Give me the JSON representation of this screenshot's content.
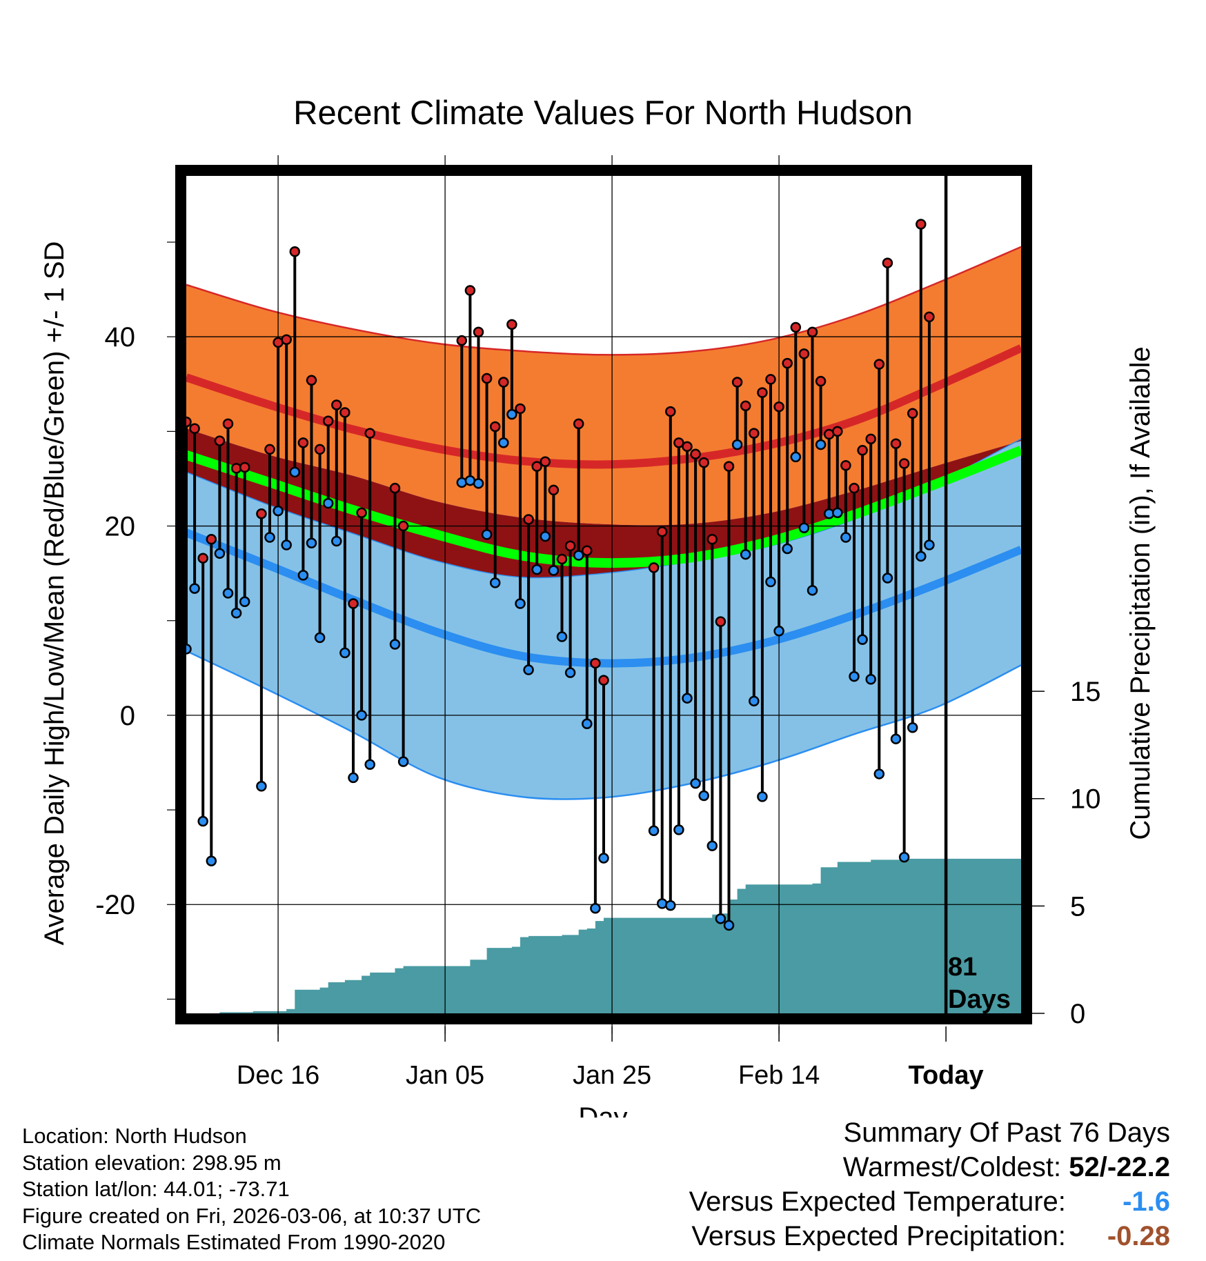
{
  "title": "Recent Climate Values For North Hudson",
  "ylabel_left": "Average Daily High/Low/Mean (Red/Blue/Green) +/- 1 SD",
  "ylabel_right": "Cumulative Precipitation (in), If Available",
  "xlabel": "Day",
  "x_ticks": [
    "Dec 16",
    "Jan 05",
    "Jan 25",
    "Feb 14",
    "Today"
  ],
  "today_marker": {
    "line1": "81",
    "line2": "Days"
  },
  "info": {
    "location": "Location: North Hudson",
    "elevation": "Station elevation: 298.95 m",
    "latlon": "Station lat/lon: 44.01; -73.71",
    "created": "Figure created on Fri, 2026-03-06, at 10:37 UTC",
    "normals": "Climate Normals Estimated From 1990-2020"
  },
  "summary": {
    "heading": "Summary Of Past 76 Days",
    "warm_cold_label": "Warmest/Coldest:",
    "warm_cold_value": "52/-22.2",
    "temp_label": "Versus Expected Temperature:",
    "temp_value": "-1.6",
    "precip_label": "Versus Expected Precipitation:",
    "precip_value": "-0.28"
  },
  "colors": {
    "high_band": "#f47c30",
    "high_line": "#d62728",
    "mean_band": "#8e1214",
    "mean_line": "#00ff00",
    "low_band": "#85c1e7",
    "low_line": "#2b8ef0",
    "precip": "#4a9ba3",
    "temp_value": "#2b8ef0",
    "precip_value": "#a0522d"
  },
  "chart_data": {
    "type": "line",
    "title": "Recent Climate Values For North Hudson",
    "xlabel": "Day",
    "ylabel": "Average Daily High/Low/Mean (Red/Blue/Green) +/- 1 SD",
    "y2label": "Cumulative Precipitation (in), If Available",
    "x_range": [
      0,
      100
    ],
    "x_unit": "days since Dec 05",
    "y_range": [
      -31.5,
      57
    ],
    "y_ticks": [
      -20,
      0,
      20,
      40
    ],
    "y2_range": [
      0,
      39
    ],
    "y2_ticks": [
      0,
      5,
      10,
      15
    ],
    "x_ticks": [
      {
        "day": 11,
        "label": "Dec 16"
      },
      {
        "day": 31,
        "label": "Jan 05"
      },
      {
        "day": 51,
        "label": "Jan 25"
      },
      {
        "day": 71,
        "label": "Feb 14"
      },
      {
        "day": 91,
        "label": "Today"
      }
    ],
    "today_day": 91,
    "normal_days": [
      0,
      10,
      20,
      30,
      40,
      50,
      60,
      70,
      80,
      90,
      100
    ],
    "normal_high_upper": [
      45.5,
      42.8,
      40.8,
      39.3,
      38.5,
      38.1,
      38.4,
      39.7,
      42.2,
      45.7,
      49.5
    ],
    "normal_high_mean": [
      35.7,
      32.8,
      30.2,
      28.2,
      26.9,
      26.5,
      27.1,
      28.6,
      31.1,
      34.8,
      38.8
    ],
    "normal_high_lower": [
      30.3,
      27.5,
      25.3,
      22.6,
      20.9,
      20.2,
      20.2,
      21.4,
      23.7,
      26.4,
      29.0
    ],
    "normal_mean_mean": [
      27.5,
      24.6,
      21.7,
      19.1,
      16.9,
      16.1,
      16.6,
      18.4,
      21.2,
      24.5,
      28.0
    ],
    "normal_low_upper": [
      25.7,
      22.2,
      19.2,
      16.3,
      14.6,
      15.0,
      16.2,
      17.9,
      20.7,
      24.6,
      29.2
    ],
    "normal_low_mean": [
      19.3,
      15.8,
      12.2,
      8.8,
      6.3,
      5.5,
      6.0,
      7.8,
      10.6,
      13.9,
      17.5
    ],
    "normal_low_lower": [
      6.8,
      2.6,
      -1.8,
      -6.5,
      -8.6,
      -8.7,
      -7.3,
      -5.0,
      -2.0,
      0.9,
      5.3
    ],
    "observed": [
      {
        "day": 0,
        "high": 31.0,
        "low": 7.0
      },
      {
        "day": 1,
        "high": 30.3,
        "low": 13.4
      },
      {
        "day": 2,
        "high": 16.6,
        "low": -11.2
      },
      {
        "day": 3,
        "high": 18.6,
        "low": -15.4
      },
      {
        "day": 4,
        "high": 29.0,
        "low": 17.1
      },
      {
        "day": 5,
        "high": 30.8,
        "low": 12.9
      },
      {
        "day": 6,
        "high": 26.1,
        "low": 10.8
      },
      {
        "day": 7,
        "high": 26.2,
        "low": 12.0
      },
      {
        "day": 9,
        "high": 21.3,
        "low": -7.5
      },
      {
        "day": 10,
        "high": 28.1,
        "low": 18.8
      },
      {
        "day": 11,
        "high": 39.4,
        "low": 21.6
      },
      {
        "day": 12,
        "high": 39.7,
        "low": 18.0
      },
      {
        "day": 13,
        "high": 49.0,
        "low": 25.7
      },
      {
        "day": 14,
        "high": 28.8,
        "low": 14.8
      },
      {
        "day": 15,
        "high": 35.4,
        "low": 18.2
      },
      {
        "day": 16,
        "high": 28.1,
        "low": 8.2
      },
      {
        "day": 17,
        "high": 31.1,
        "low": 22.4
      },
      {
        "day": 18,
        "high": 32.8,
        "low": 18.4
      },
      {
        "day": 19,
        "high": 32.0,
        "low": 6.6
      },
      {
        "day": 20,
        "high": 11.8,
        "low": -6.6
      },
      {
        "day": 21,
        "high": 21.4,
        "low": 0.0
      },
      {
        "day": 22,
        "high": 29.8,
        "low": -5.2
      },
      {
        "day": 25,
        "high": 24.0,
        "low": 7.5
      },
      {
        "day": 26,
        "high": 20.0,
        "low": -4.9
      },
      {
        "day": 33,
        "high": 39.6,
        "low": 24.6
      },
      {
        "day": 34,
        "high": 44.9,
        "low": 24.8
      },
      {
        "day": 35,
        "high": 40.5,
        "low": 24.5
      },
      {
        "day": 36,
        "high": 35.6,
        "low": 19.1
      },
      {
        "day": 37,
        "high": 30.5,
        "low": 14.0
      },
      {
        "day": 38,
        "high": 35.2,
        "low": 28.8
      },
      {
        "day": 39,
        "high": 41.3,
        "low": 31.8
      },
      {
        "day": 40,
        "high": 32.4,
        "low": 11.8
      },
      {
        "day": 41,
        "high": 20.7,
        "low": 4.8
      },
      {
        "day": 42,
        "high": 26.3,
        "low": 15.4
      },
      {
        "day": 43,
        "high": 26.8,
        "low": 18.9
      },
      {
        "day": 44,
        "high": 23.8,
        "low": 15.3
      },
      {
        "day": 45,
        "high": 16.5,
        "low": 8.3
      },
      {
        "day": 46,
        "high": 17.9,
        "low": 4.5
      },
      {
        "day": 47,
        "high": 30.8,
        "low": 16.9
      },
      {
        "day": 48,
        "high": 17.4,
        "low": -0.9
      },
      {
        "day": 49,
        "high": 5.5,
        "low": -20.4
      },
      {
        "day": 50,
        "high": 3.7,
        "low": -15.1
      },
      {
        "day": 56,
        "high": 15.6,
        "low": -12.2
      },
      {
        "day": 57,
        "high": 19.4,
        "low": -19.9
      },
      {
        "day": 58,
        "high": 32.1,
        "low": -20.1
      },
      {
        "day": 59,
        "high": 28.8,
        "low": -12.1
      },
      {
        "day": 60,
        "high": 28.4,
        "low": 1.8
      },
      {
        "day": 61,
        "high": 27.6,
        "low": -7.2
      },
      {
        "day": 62,
        "high": 26.7,
        "low": -8.5
      },
      {
        "day": 63,
        "high": 18.6,
        "low": -13.8
      },
      {
        "day": 64,
        "high": 9.9,
        "low": -21.5
      },
      {
        "day": 65,
        "high": 26.3,
        "low": -22.2
      },
      {
        "day": 66,
        "high": 35.2,
        "low": 28.6
      },
      {
        "day": 67,
        "high": 32.7,
        "low": 17.0
      },
      {
        "day": 68,
        "high": 29.8,
        "low": 1.5
      },
      {
        "day": 69,
        "high": 34.1,
        "low": -8.6
      },
      {
        "day": 70,
        "high": 35.5,
        "low": 14.1
      },
      {
        "day": 71,
        "high": 32.6,
        "low": 8.9
      },
      {
        "day": 72,
        "high": 37.2,
        "low": 17.6
      },
      {
        "day": 73,
        "high": 41.0,
        "low": 27.3
      },
      {
        "day": 74,
        "high": 38.2,
        "low": 19.8
      },
      {
        "day": 75,
        "high": 40.5,
        "low": 13.2
      },
      {
        "day": 76,
        "high": 35.3,
        "low": 28.6
      },
      {
        "day": 77,
        "high": 29.7,
        "low": 21.3
      },
      {
        "day": 78,
        "high": 30.0,
        "low": 21.4
      },
      {
        "day": 79,
        "high": 26.4,
        "low": 18.8
      },
      {
        "day": 80,
        "high": 24.0,
        "low": 4.1
      },
      {
        "day": 81,
        "high": 28.0,
        "low": 8.0
      },
      {
        "day": 82,
        "high": 29.2,
        "low": 3.8
      },
      {
        "day": 83,
        "high": 37.1,
        "low": -6.2
      },
      {
        "day": 84,
        "high": 47.8,
        "low": 14.5
      },
      {
        "day": 85,
        "high": 28.7,
        "low": -2.5
      },
      {
        "day": 86,
        "high": 26.6,
        "low": -15.0
      },
      {
        "day": 87,
        "high": 31.9,
        "low": -1.3
      },
      {
        "day": 88,
        "high": 51.9,
        "low": 16.8
      },
      {
        "day": 89,
        "high": 42.1,
        "low": 18.0
      }
    ],
    "precip_cumulative": [
      {
        "day": 0,
        "value": 0.0
      },
      {
        "day": 4,
        "value": 0.05
      },
      {
        "day": 8,
        "value": 0.1
      },
      {
        "day": 12,
        "value": 0.2
      },
      {
        "day": 13,
        "value": 1.1
      },
      {
        "day": 16,
        "value": 1.2
      },
      {
        "day": 17,
        "value": 1.45
      },
      {
        "day": 19,
        "value": 1.55
      },
      {
        "day": 21,
        "value": 1.75
      },
      {
        "day": 22,
        "value": 1.9
      },
      {
        "day": 25,
        "value": 2.1
      },
      {
        "day": 26,
        "value": 2.2
      },
      {
        "day": 33,
        "value": 2.2
      },
      {
        "day": 34,
        "value": 2.5
      },
      {
        "day": 36,
        "value": 3.05
      },
      {
        "day": 39,
        "value": 3.1
      },
      {
        "day": 40,
        "value": 3.55
      },
      {
        "day": 41,
        "value": 3.6
      },
      {
        "day": 45,
        "value": 3.65
      },
      {
        "day": 47,
        "value": 3.9
      },
      {
        "day": 48,
        "value": 3.95
      },
      {
        "day": 49,
        "value": 4.3
      },
      {
        "day": 50,
        "value": 4.45
      },
      {
        "day": 62,
        "value": 4.45
      },
      {
        "day": 63,
        "value": 4.6
      },
      {
        "day": 64,
        "value": 4.65
      },
      {
        "day": 65,
        "value": 5.3
      },
      {
        "day": 66,
        "value": 5.8
      },
      {
        "day": 67,
        "value": 6.0
      },
      {
        "day": 75,
        "value": 6.05
      },
      {
        "day": 76,
        "value": 6.8
      },
      {
        "day": 77,
        "value": 6.8
      },
      {
        "day": 78,
        "value": 7.05
      },
      {
        "day": 82,
        "value": 7.15
      },
      {
        "day": 86,
        "value": 7.2
      },
      {
        "day": 100,
        "value": 7.2
      }
    ]
  }
}
